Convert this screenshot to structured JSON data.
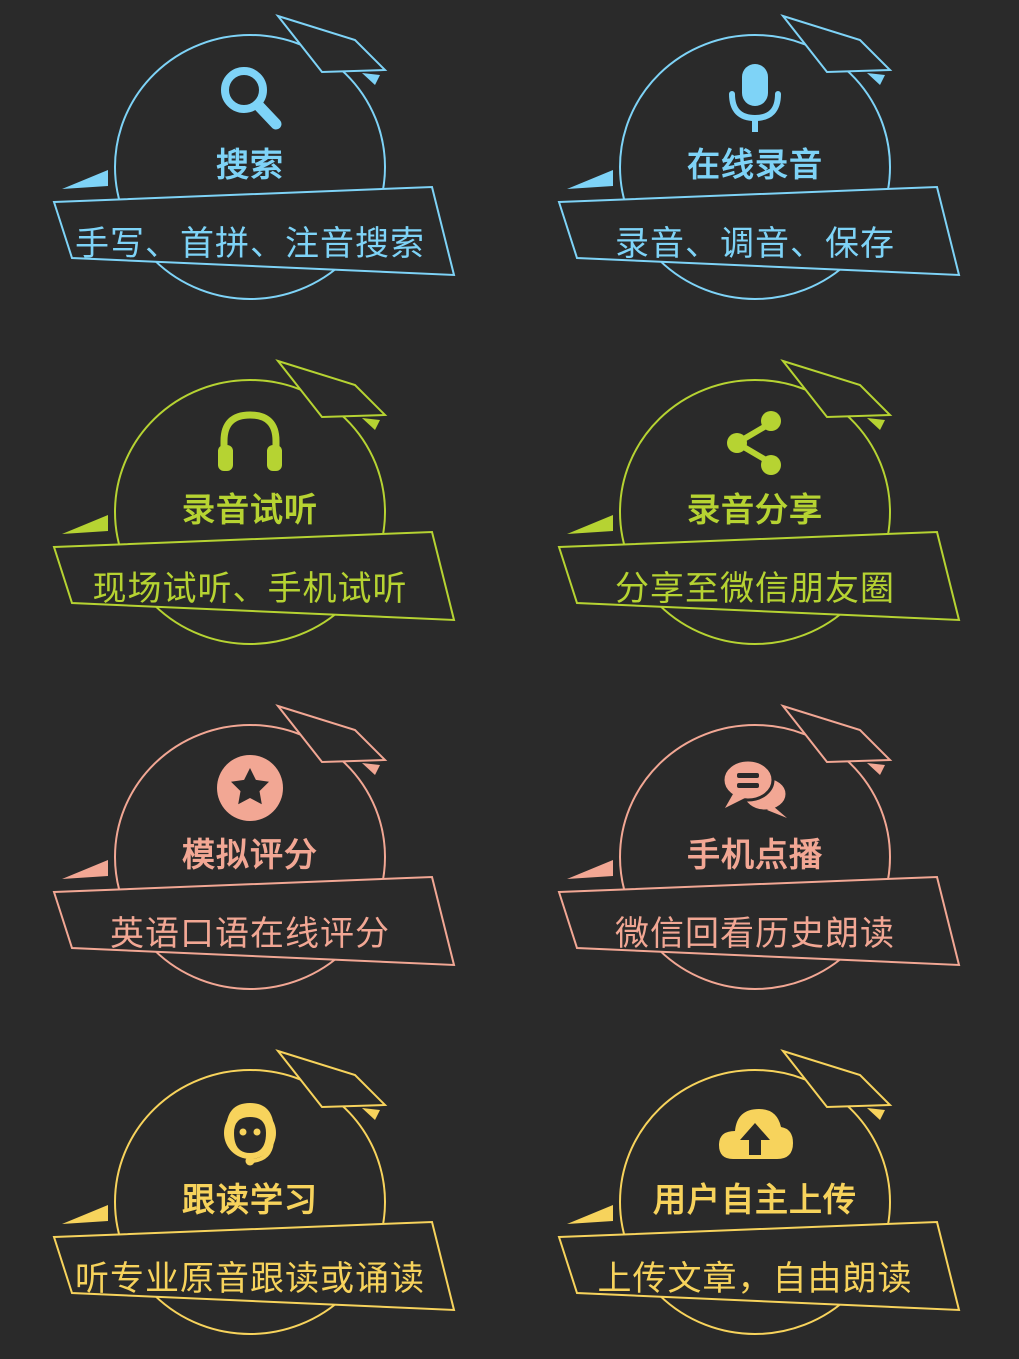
{
  "colors": {
    "background": "#2a2a2a",
    "blue": "#7ed3f7",
    "green": "#b6d332",
    "pink": "#f2a794",
    "yellow": "#f7d35c"
  },
  "features": [
    {
      "title": "搜索",
      "subtitle": "手写、首拼、注音搜索",
      "icon": "search-icon",
      "color": "#7ed3f7"
    },
    {
      "title": "在线录音",
      "subtitle": "录音、调音、保存",
      "icon": "microphone-icon",
      "color": "#7ed3f7"
    },
    {
      "title": "录音试听",
      "subtitle": "现场试听、手机试听",
      "icon": "headphones-icon",
      "color": "#b6d332"
    },
    {
      "title": "录音分享",
      "subtitle": "分享至微信朋友圈",
      "icon": "share-icon",
      "color": "#b6d332"
    },
    {
      "title": "模拟评分",
      "subtitle": "英语口语在线评分",
      "icon": "star-icon",
      "color": "#f2a794"
    },
    {
      "title": "手机点播",
      "subtitle": "微信回看历史朗读",
      "icon": "chat-bubbles-icon",
      "color": "#f2a794"
    },
    {
      "title": "跟读学习",
      "subtitle": "听专业原音跟读或诵读",
      "icon": "headset-person-icon",
      "color": "#f7d35c"
    },
    {
      "title": "用户自主上传",
      "subtitle": "上传文章，自由朗读",
      "icon": "cloud-upload-icon",
      "color": "#f7d35c"
    }
  ]
}
